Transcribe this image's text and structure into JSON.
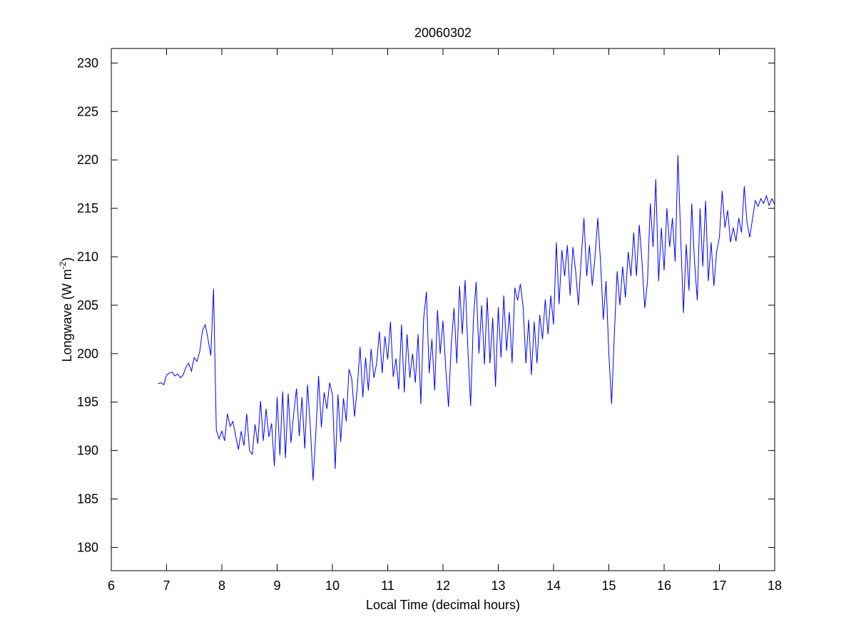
{
  "chart_data": {
    "type": "line",
    "title": "20060302",
    "xlabel": "Local Time (decimal hours)",
    "ylabel": {
      "text": "Longwave (W m",
      "superscript": "-2",
      "suffix": ")"
    },
    "xlim": [
      6,
      18
    ],
    "xticks": [
      6,
      7,
      8,
      9,
      10,
      11,
      12,
      13,
      14,
      15,
      16,
      17,
      18
    ],
    "ylim": [
      177.6,
      231.5
    ],
    "yticks": [
      180,
      185,
      190,
      195,
      200,
      205,
      210,
      215,
      220,
      225,
      230
    ],
    "grid": false,
    "series": [
      {
        "color": "#0000ff",
        "x": [
          6.85,
          6.9,
          6.95,
          7,
          7.05,
          7.1,
          7.15,
          7.2,
          7.25,
          7.3,
          7.35,
          7.4,
          7.45,
          7.5,
          7.55,
          7.6,
          7.65,
          7.7,
          7.75,
          7.8,
          7.85,
          7.9,
          7.95,
          8,
          8.05,
          8.1,
          8.15,
          8.2,
          8.25,
          8.3,
          8.35,
          8.4,
          8.45,
          8.5,
          8.55,
          8.6,
          8.65,
          8.7,
          8.75,
          8.8,
          8.85,
          8.9,
          8.95,
          9,
          9.05,
          9.1,
          9.15,
          9.2,
          9.25,
          9.3,
          9.35,
          9.4,
          9.45,
          9.5,
          9.55,
          9.6,
          9.65,
          9.7,
          9.75,
          9.8,
          9.85,
          9.9,
          9.95,
          10,
          10.05,
          10.1,
          10.15,
          10.2,
          10.25,
          10.3,
          10.35,
          10.4,
          10.45,
          10.5,
          10.55,
          10.6,
          10.65,
          10.7,
          10.75,
          10.8,
          10.85,
          10.9,
          10.95,
          11,
          11.05,
          11.1,
          11.15,
          11.2,
          11.25,
          11.3,
          11.35,
          11.4,
          11.45,
          11.5,
          11.55,
          11.6,
          11.65,
          11.7,
          11.75,
          11.8,
          11.85,
          11.9,
          11.95,
          12,
          12.05,
          12.1,
          12.15,
          12.2,
          12.25,
          12.3,
          12.35,
          12.4,
          12.45,
          12.5,
          12.55,
          12.6,
          12.65,
          12.7,
          12.75,
          12.8,
          12.85,
          12.9,
          12.95,
          13,
          13.05,
          13.1,
          13.15,
          13.2,
          13.25,
          13.3,
          13.35,
          13.4,
          13.45,
          13.5,
          13.55,
          13.6,
          13.65,
          13.7,
          13.75,
          13.8,
          13.85,
          13.9,
          13.95,
          14,
          14.05,
          14.1,
          14.15,
          14.2,
          14.25,
          14.3,
          14.35,
          14.4,
          14.45,
          14.5,
          14.55,
          14.6,
          14.65,
          14.7,
          14.75,
          14.8,
          14.85,
          14.9,
          14.95,
          15,
          15.05,
          15.1,
          15.15,
          15.2,
          15.25,
          15.3,
          15.35,
          15.4,
          15.45,
          15.5,
          15.55,
          15.6,
          15.65,
          15.7,
          15.75,
          15.8,
          15.85,
          15.9,
          15.95,
          16,
          16.05,
          16.1,
          16.15,
          16.2,
          16.25,
          16.3,
          16.35,
          16.4,
          16.45,
          16.5,
          16.55,
          16.6,
          16.65,
          16.7,
          16.75,
          16.8,
          16.85,
          16.9,
          16.95,
          17,
          17.05,
          17.1,
          17.15,
          17.2,
          17.25,
          17.3,
          17.35,
          17.4,
          17.45,
          17.5,
          17.55,
          17.6,
          17.65,
          17.7,
          17.75,
          17.8,
          17.85,
          17.9,
          17.95,
          18
        ],
        "values": [
          196.9,
          197.0,
          196.8,
          197.8,
          198.0,
          198.1,
          197.7,
          197.9,
          197.5,
          197.8,
          198.6,
          199.0,
          198.2,
          199.6,
          199.2,
          200.2,
          202.4,
          203.0,
          201.5,
          199.8,
          206.7,
          192.1,
          191.2,
          192.0,
          191.0,
          193.8,
          192.5,
          193.0,
          191.5,
          190.1,
          192.0,
          190.5,
          193.8,
          190.0,
          189.6,
          192.7,
          190.7,
          195.1,
          191.0,
          194.3,
          191.4,
          192.8,
          188.4,
          195.5,
          189.5,
          196.1,
          189.2,
          195.9,
          190.8,
          193.8,
          196.4,
          191.5,
          195.5,
          190.2,
          196.8,
          192.5,
          186.9,
          191.8,
          197.7,
          192.4,
          196.0,
          194.3,
          197.0,
          195.8,
          188.1,
          195.8,
          190.9,
          195.4,
          193.0,
          198.4,
          197.4,
          193.5,
          196.5,
          200.7,
          195.5,
          199.6,
          196.2,
          200.5,
          197.5,
          199.0,
          202.3,
          198.0,
          201.8,
          199.4,
          203.3,
          197.6,
          199.5,
          196.3,
          203.0,
          196.0,
          202.0,
          197.5,
          200.0,
          197.0,
          202.0,
          194.8,
          203.6,
          206.4,
          198.0,
          201.5,
          196.2,
          204.5,
          200.0,
          203.4,
          198.5,
          194.5,
          201.0,
          204.7,
          199.0,
          207.0,
          202.0,
          207.6,
          200.5,
          194.6,
          203.5,
          207.4,
          200.0,
          205.0,
          198.9,
          205.8,
          199.0,
          203.7,
          196.6,
          204.8,
          199.6,
          206.0,
          200.3,
          204.3,
          199.0,
          206.8,
          205.5,
          207.2,
          204.8,
          199.0,
          203.5,
          197.8,
          203.3,
          199.0,
          204.0,
          201.5,
          205.6,
          202.0,
          206.0,
          203.0,
          211.5,
          205.1,
          210.7,
          208.0,
          211.2,
          206.0,
          211.0,
          208.5,
          205.0,
          209.8,
          214.0,
          208.0,
          211.2,
          207.0,
          210.0,
          214.0,
          209.5,
          203.5,
          207.5,
          200.0,
          194.8,
          202.0,
          208.5,
          205.0,
          209.0,
          205.8,
          210.5,
          208.0,
          212.5,
          208.0,
          213.3,
          209.5,
          204.7,
          207.5,
          215.5,
          211.0,
          218.0,
          207.5,
          213.0,
          208.6,
          215.0,
          211.0,
          214.0,
          209.5,
          220.5,
          212.0,
          204.2,
          211.3,
          206.5,
          215.5,
          209.5,
          205.5,
          215.0,
          209.0,
          215.8,
          207.5,
          211.5,
          207.0,
          210.5,
          212.0,
          216.8,
          213.0,
          214.8,
          211.5,
          213.0,
          211.6,
          214.0,
          212.5,
          217.3,
          213.5,
          212.0,
          214.0,
          215.8,
          215.2,
          216.0,
          215.5,
          216.3,
          215.3,
          216.0,
          215.4
        ]
      }
    ]
  }
}
